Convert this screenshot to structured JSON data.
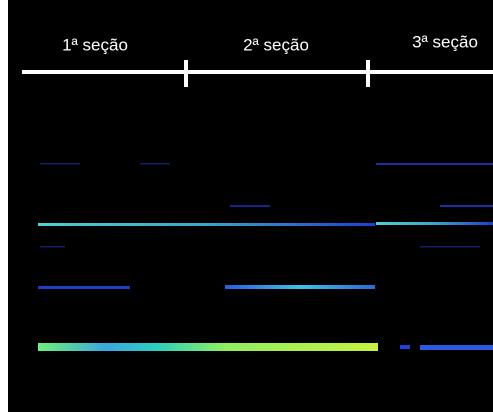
{
  "sections": [
    "1ª seção",
    "2ª seção",
    "3ª seção"
  ]
}
